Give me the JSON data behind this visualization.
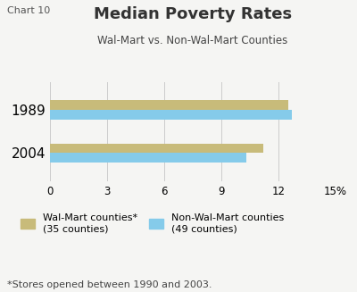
{
  "title": "Median Poverty Rates",
  "subtitle": "Wal-Mart vs. Non-Wal-Mart Counties",
  "chart_label": "Chart 10",
  "categories": [
    "2004",
    "1989"
  ],
  "walmart_values": [
    11.2,
    12.5
  ],
  "non_walmart_values": [
    10.3,
    12.7
  ],
  "walmart_color": "#c8bb7a",
  "non_walmart_color": "#85cbea",
  "xlim": [
    0,
    15
  ],
  "xticks": [
    0,
    3,
    6,
    9,
    12,
    15
  ],
  "xtick_labels": [
    "0",
    "3",
    "6",
    "9",
    "12",
    "15%"
  ],
  "legend_walmart": "Wal-Mart counties*\n(35 counties)",
  "legend_non_walmart": "Non-Wal-Mart counties\n(49 counties)",
  "footnote": "*Stores opened between 1990 and 2003.",
  "background_color": "#f5f5f3",
  "bar_height": 0.22,
  "title_fontsize": 13,
  "subtitle_fontsize": 8.5,
  "axis_fontsize": 8.5,
  "ytick_fontsize": 11,
  "legend_fontsize": 8,
  "footnote_fontsize": 8,
  "chart_label_fontsize": 8
}
